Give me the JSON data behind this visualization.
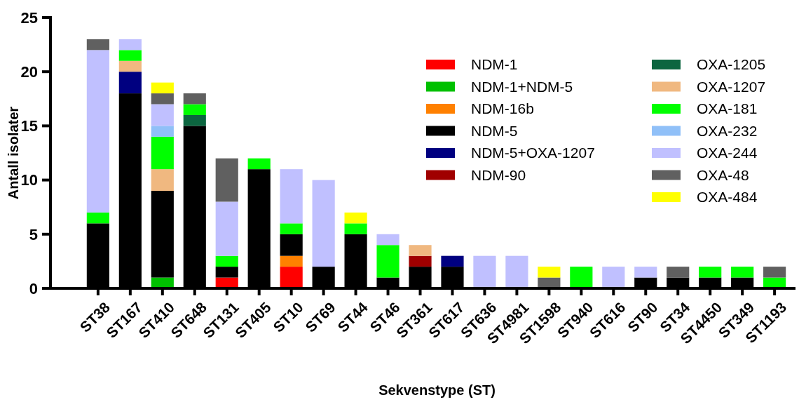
{
  "chart_data": {
    "type": "bar",
    "stacked": true,
    "xlabel": "Sekvenstype (ST)",
    "ylabel": "Antall isolater",
    "legend": "top right",
    "grid": false,
    "categories": [
      "ST38",
      "ST167",
      "ST410",
      "ST648",
      "ST131",
      "ST405",
      "ST10",
      "ST69",
      "ST44",
      "ST46",
      "ST361",
      "ST617",
      "ST636",
      "ST4981",
      "ST1598",
      "ST940",
      "ST616",
      "ST90",
      "ST34",
      "ST4450",
      "ST349",
      "ST1193"
    ],
    "ylim": [
      0,
      25
    ],
    "yticks": [
      0,
      5,
      10,
      15,
      20,
      25
    ],
    "series": [
      {
        "name": "NDM-1",
        "color": "#ff0000",
        "values": [
          0,
          0,
          0,
          0,
          1,
          0,
          2,
          0,
          0,
          0,
          0,
          0,
          0,
          0,
          0,
          0,
          0,
          0,
          0,
          0,
          0,
          0
        ]
      },
      {
        "name": "NDM-1+NDM-5",
        "color": "#00c000",
        "values": [
          0,
          0,
          1,
          0,
          0,
          0,
          0,
          0,
          0,
          0,
          0,
          0,
          0,
          0,
          0,
          0,
          0,
          0,
          0,
          0,
          0,
          0
        ]
      },
      {
        "name": "NDM-16b",
        "color": "#ff8000",
        "values": [
          0,
          0,
          0,
          0,
          0,
          0,
          1,
          0,
          0,
          0,
          0,
          0,
          0,
          0,
          0,
          0,
          0,
          0,
          0,
          0,
          0,
          0
        ]
      },
      {
        "name": "NDM-5",
        "color": "#000000",
        "values": [
          6,
          18,
          8,
          15,
          1,
          11,
          2,
          2,
          5,
          1,
          2,
          2,
          0,
          0,
          0,
          0,
          0,
          1,
          1,
          1,
          1,
          0
        ]
      },
      {
        "name": "NDM-5+OXA-1207",
        "color": "#000080",
        "values": [
          0,
          2,
          0,
          0,
          0,
          0,
          0,
          0,
          0,
          0,
          0,
          1,
          0,
          0,
          0,
          0,
          0,
          0,
          0,
          0,
          0,
          0
        ]
      },
      {
        "name": "NDM-90",
        "color": "#a00000",
        "values": [
          0,
          0,
          0,
          0,
          0,
          0,
          0,
          0,
          0,
          0,
          1,
          0,
          0,
          0,
          0,
          0,
          0,
          0,
          0,
          0,
          0,
          0
        ]
      },
      {
        "name": "OXA-1205",
        "color": "#0c6640",
        "values": [
          0,
          0,
          0,
          1,
          0,
          0,
          0,
          0,
          0,
          0,
          0,
          0,
          0,
          0,
          0,
          0,
          0,
          0,
          0,
          0,
          0,
          0
        ]
      },
      {
        "name": "OXA-1207",
        "color": "#f0b880",
        "values": [
          0,
          1,
          2,
          0,
          0,
          0,
          0,
          0,
          0,
          0,
          1,
          0,
          0,
          0,
          0,
          0,
          0,
          0,
          0,
          0,
          0,
          0
        ]
      },
      {
        "name": "OXA-181",
        "color": "#00ff00",
        "values": [
          1,
          1,
          3,
          1,
          1,
          1,
          1,
          0,
          1,
          3,
          0,
          0,
          0,
          0,
          0,
          2,
          0,
          0,
          0,
          1,
          1,
          1
        ]
      },
      {
        "name": "OXA-232",
        "color": "#90c0f8",
        "values": [
          0,
          0,
          1,
          0,
          0,
          0,
          0,
          0,
          0,
          0,
          0,
          0,
          0,
          0,
          0,
          0,
          0,
          0,
          0,
          0,
          0,
          0
        ]
      },
      {
        "name": "OXA-244",
        "color": "#c0c0ff",
        "values": [
          15,
          1,
          2,
          0,
          5,
          0,
          5,
          8,
          0,
          1,
          0,
          0,
          3,
          3,
          0,
          0,
          2,
          1,
          0,
          0,
          0,
          0
        ]
      },
      {
        "name": "OXA-48",
        "color": "#606060",
        "values": [
          1,
          0,
          1,
          1,
          4,
          0,
          0,
          0,
          0,
          0,
          0,
          0,
          0,
          0,
          1,
          0,
          0,
          0,
          1,
          0,
          0,
          1
        ]
      },
      {
        "name": "OXA-484",
        "color": "#ffff00",
        "values": [
          0,
          0,
          1,
          0,
          0,
          0,
          0,
          0,
          1,
          0,
          0,
          0,
          0,
          0,
          1,
          0,
          0,
          0,
          0,
          0,
          0,
          0
        ]
      }
    ]
  }
}
